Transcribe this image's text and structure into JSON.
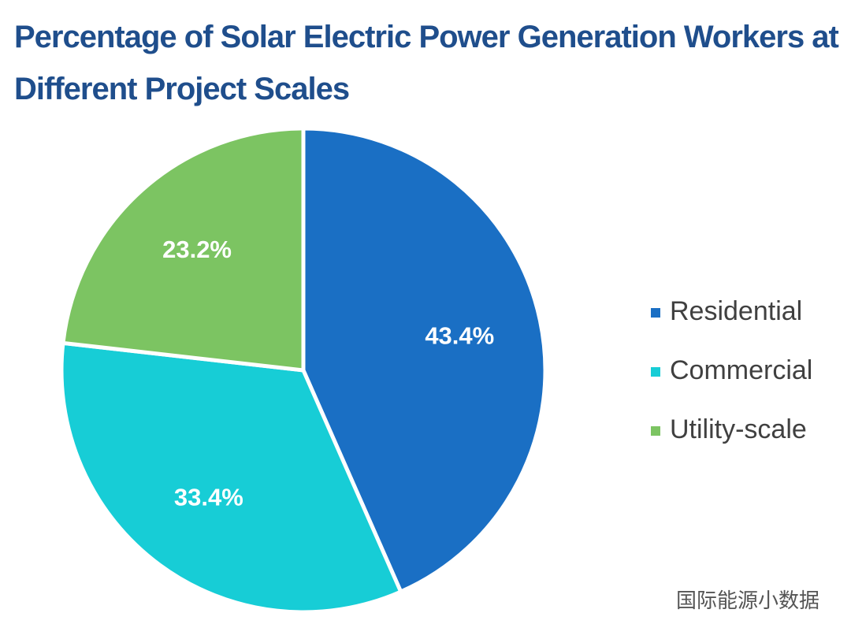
{
  "chart_data": {
    "type": "pie",
    "title": "Percentage of Solar Electric Power Generation Workers at Different Project Scales",
    "categories": [
      "Residential",
      "Commercial",
      "Utility-scale"
    ],
    "values": [
      43.4,
      33.4,
      23.2
    ],
    "value_labels": [
      "43.4%",
      "33.4%",
      "23.2%"
    ],
    "colors": [
      "#1a6fc4",
      "#17cdd6",
      "#7cc462"
    ],
    "legend": "right",
    "watermark": "国际能源小数据"
  }
}
